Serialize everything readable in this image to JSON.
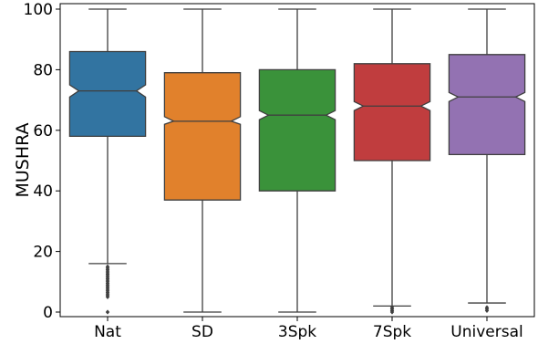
{
  "chart_data": {
    "type": "box",
    "notched": true,
    "title": "",
    "xlabel": "",
    "ylabel": "MUSHRA",
    "ylim": [
      0,
      100
    ],
    "yticks": [
      0,
      20,
      40,
      60,
      80,
      100
    ],
    "grid": false,
    "legend": "none",
    "categories": [
      "Nat",
      "SD",
      "3Spk",
      "7Spk",
      "Universal"
    ],
    "boxes": [
      {
        "category": "Nat",
        "whisker_low": 16,
        "q1": 58,
        "median": 73,
        "q3": 86,
        "whisker_high": 100,
        "notch_low": 71,
        "notch_high": 75,
        "outliers": [
          15,
          14.5,
          14,
          13.5,
          13,
          12.5,
          12,
          11.5,
          11,
          10.5,
          10,
          9.5,
          9,
          8.5,
          8,
          7.5,
          7,
          6.5,
          6,
          5.5,
          5,
          0
        ],
        "color": "#3274a1"
      },
      {
        "category": "SD",
        "whisker_low": 0,
        "q1": 37,
        "median": 63,
        "q3": 79,
        "whisker_high": 100,
        "notch_low": 62,
        "notch_high": 64.5,
        "outliers": [],
        "color": "#e1812c"
      },
      {
        "category": "3Spk",
        "whisker_low": 0,
        "q1": 40,
        "median": 65,
        "q3": 80,
        "whisker_high": 100,
        "notch_low": 63.5,
        "notch_high": 66.5,
        "outliers": [],
        "color": "#3a923a"
      },
      {
        "category": "7Spk",
        "whisker_low": 2,
        "q1": 50,
        "median": 68,
        "q3": 82,
        "whisker_high": 100,
        "notch_low": 66.5,
        "notch_high": 69.5,
        "outliers": [
          1.5,
          1,
          0.5,
          0
        ],
        "color": "#c03d3e"
      },
      {
        "category": "Universal",
        "whisker_low": 3,
        "q1": 52,
        "median": 71,
        "q3": 85,
        "whisker_high": 100,
        "notch_low": 69.5,
        "notch_high": 72.5,
        "outliers": [
          1.5,
          1,
          0.5
        ],
        "color": "#9372b2"
      }
    ]
  }
}
